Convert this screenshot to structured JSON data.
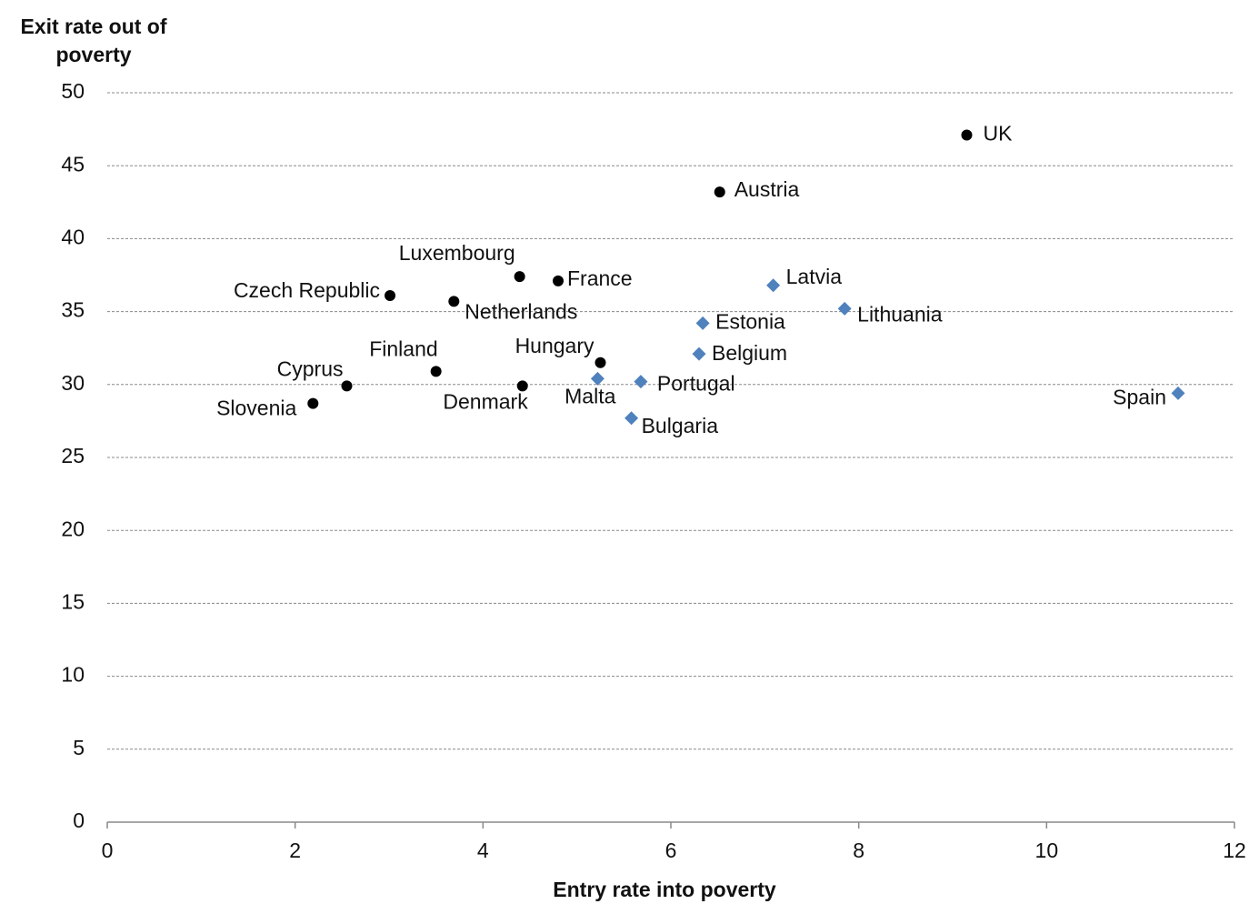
{
  "chart_data": {
    "type": "scatter",
    "x_label": "Entry rate into poverty",
    "y_label": "Exit rate out of poverty",
    "xlim": [
      0,
      12
    ],
    "xticks": [
      0,
      2,
      4,
      6,
      8,
      10,
      12
    ],
    "ylim": [
      0,
      50
    ],
    "yticks": [
      0,
      5,
      10,
      15,
      20,
      25,
      30,
      35,
      40,
      45,
      50
    ],
    "grid": true,
    "series": [
      {
        "color": "#000000",
        "marker": "circle",
        "labels": [
          "UK",
          "Austria",
          "Luxembourg",
          "France",
          "Czech Republic",
          "Netherlands",
          "Hungary",
          "Finland",
          "Cyprus",
          "Denmark",
          "Slovenia"
        ],
        "x": [
          9.15,
          6.52,
          4.39,
          4.8,
          3.01,
          3.69,
          5.25,
          3.5,
          2.55,
          4.42,
          2.19
        ],
        "values": [
          47.1,
          43.2,
          37.4,
          37.1,
          36.1,
          35.7,
          31.5,
          30.9,
          29.9,
          29.9,
          28.7
        ]
      },
      {
        "color": "#4f81bd",
        "marker": "diamond",
        "labels": [
          "Latvia",
          "Lithuania",
          "Estonia",
          "Belgium",
          "Malta",
          "Portugal",
          "Bulgaria",
          "Spain"
        ],
        "x": [
          7.09,
          7.85,
          6.34,
          6.3,
          5.22,
          5.68,
          5.58,
          11.4
        ],
        "values": [
          36.8,
          35.2,
          34.2,
          32.1,
          30.4,
          30.2,
          27.7,
          29.4
        ]
      }
    ]
  }
}
